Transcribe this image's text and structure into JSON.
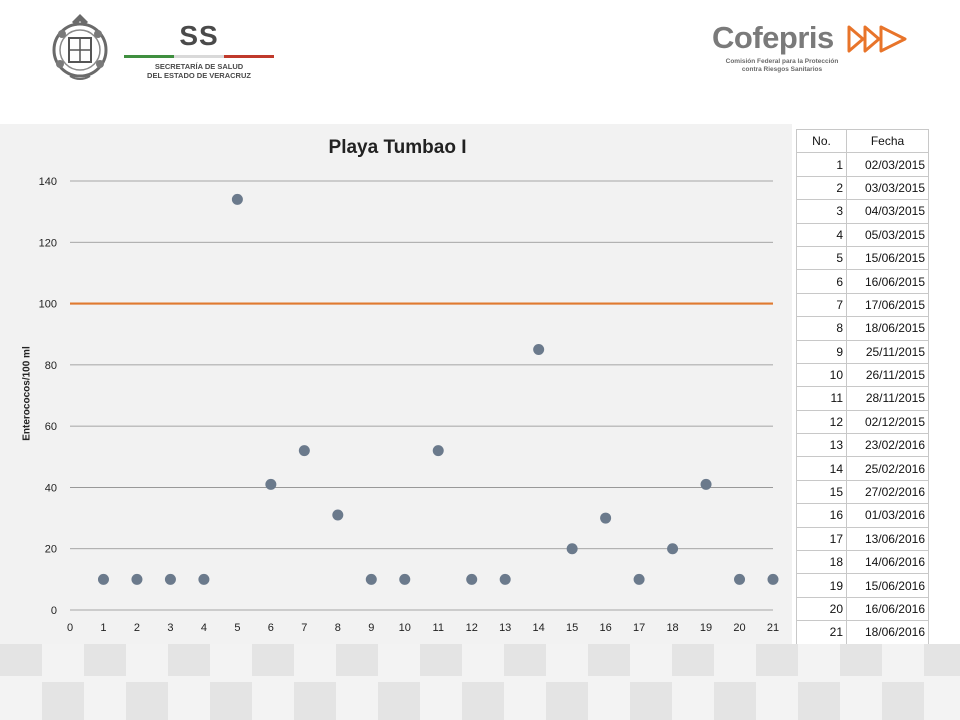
{
  "header": {
    "ss_logo_text": "SS",
    "ss_subtitle_line1": "SECRETARÍA DE SALUD",
    "ss_subtitle_line2": "DEL ESTADO DE VERACRUZ",
    "cofepris_name": "Cofepris",
    "cofepris_subtitle_line1": "Comisión Federal para la Protección",
    "cofepris_subtitle_line2": "contra Riesgos Sanitarios",
    "colors": {
      "orange": "#e8742a",
      "green": "#3f8f3f",
      "red": "#c0392b",
      "gray": "#4a4a4a"
    }
  },
  "chart_data": {
    "type": "scatter",
    "title": "Playa Tumbao I",
    "xlabel": "",
    "ylabel": "Enterococos/100 ml",
    "xlim": [
      0,
      21
    ],
    "ylim": [
      0,
      140
    ],
    "xticks": [
      0,
      1,
      2,
      3,
      4,
      5,
      6,
      7,
      8,
      9,
      10,
      11,
      12,
      13,
      14,
      15,
      16,
      17,
      18,
      19,
      20,
      21
    ],
    "yticks": [
      0,
      20,
      40,
      60,
      80,
      100,
      120,
      140
    ],
    "grid": true,
    "series": [
      {
        "type": "scatter",
        "color": "#6b7a8c",
        "x": [
          1,
          2,
          3,
          4,
          5,
          6,
          7,
          8,
          9,
          10,
          11,
          12,
          13,
          14,
          15,
          16,
          17,
          18,
          19,
          20,
          21
        ],
        "y": [
          10,
          10,
          10,
          10,
          134,
          41,
          52,
          31,
          10,
          10,
          52,
          10,
          10,
          85,
          20,
          30,
          10,
          20,
          41,
          10,
          10
        ]
      },
      {
        "type": "line",
        "color": "#e07a30",
        "x": [
          0,
          21
        ],
        "y": [
          100,
          100
        ]
      }
    ]
  },
  "table": {
    "headers": [
      "No.",
      "Fecha"
    ],
    "rows": [
      [
        "1",
        "02/03/2015"
      ],
      [
        "2",
        "03/03/2015"
      ],
      [
        "3",
        "04/03/2015"
      ],
      [
        "4",
        "05/03/2015"
      ],
      [
        "5",
        "15/06/2015"
      ],
      [
        "6",
        "16/06/2015"
      ],
      [
        "7",
        "17/06/2015"
      ],
      [
        "8",
        "18/06/2015"
      ],
      [
        "9",
        "25/11/2015"
      ],
      [
        "10",
        "26/11/2015"
      ],
      [
        "11",
        "28/11/2015"
      ],
      [
        "12",
        "02/12/2015"
      ],
      [
        "13",
        "23/02/2016"
      ],
      [
        "14",
        "25/02/2016"
      ],
      [
        "15",
        "27/02/2016"
      ],
      [
        "16",
        "01/03/2016"
      ],
      [
        "17",
        "13/06/2016"
      ],
      [
        "18",
        "14/06/2016"
      ],
      [
        "19",
        "15/06/2016"
      ],
      [
        "20",
        "16/06/2016"
      ],
      [
        "21",
        "18/06/2016"
      ]
    ]
  }
}
